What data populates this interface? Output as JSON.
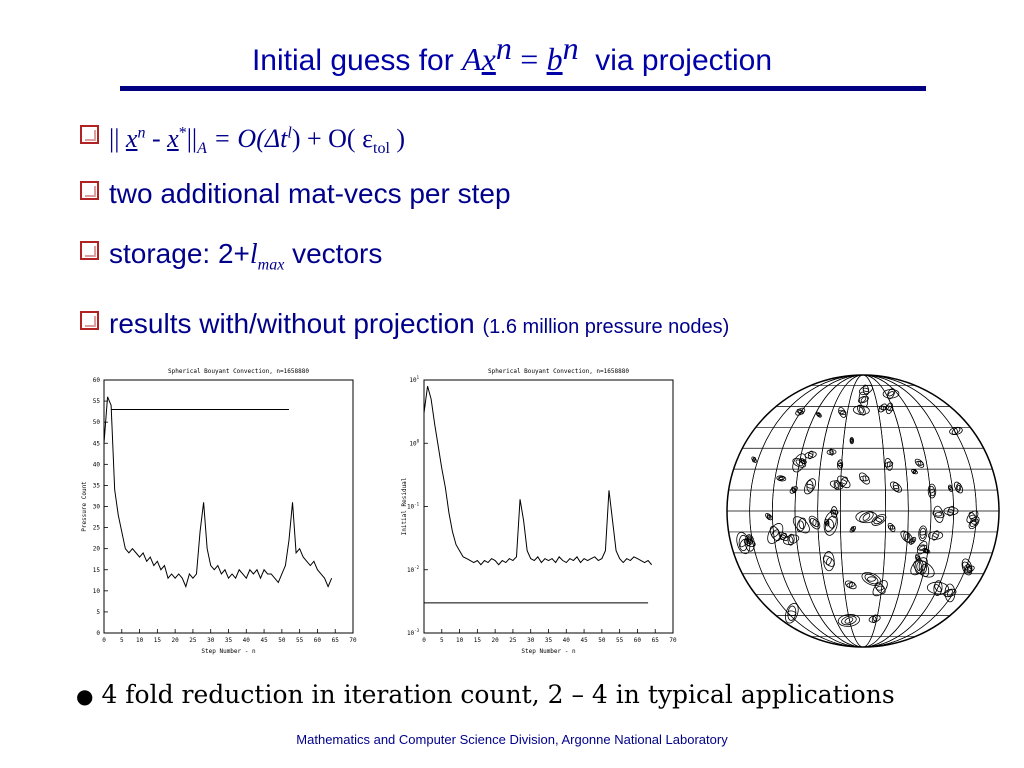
{
  "title": {
    "prefix": "Initial guess for",
    "A": "A",
    "x": "x",
    "n1": "n",
    "eq": "=",
    "b": "b",
    "n2": "n",
    "suffix": "via projection"
  },
  "bullets": {
    "b1": {
      "norm_open": "||",
      "x": "x",
      "n": "n",
      "minus": "-",
      "x2": "x",
      "star": "*",
      "norm_close": "||",
      "A": "A",
      "rhs1": "= O(Δt",
      "l": "l",
      "rhs2": ") + O( ε",
      "tol": "tol",
      "close": " )"
    },
    "b2": {
      "text": "two additional mat-vecs per step"
    },
    "b3": {
      "text1": "storage:  2+",
      "l": "l",
      "max": "max",
      "text2": " vectors"
    },
    "b4": {
      "text": "results with/without projection",
      "note": "(1.6 million pressure nodes)"
    }
  },
  "chart_data": [
    {
      "type": "line",
      "title": "Spherical Bouyant Convection, n=1658880",
      "xlabel": "Step Number - n",
      "ylabel": "Pressure Count",
      "xlim": [
        0,
        70
      ],
      "ylim": [
        0,
        60
      ],
      "xticks": [
        "0",
        "5",
        "10",
        "15",
        "20",
        "25",
        "30",
        "35",
        "40",
        "45",
        "50",
        "55",
        "60",
        "65",
        "70"
      ],
      "yticks": [
        "0",
        "5",
        "10",
        "15",
        "20",
        "25",
        "30",
        "35",
        "40",
        "45",
        "50",
        "55",
        "60"
      ],
      "series": [
        {
          "x": [
            0,
            1,
            2,
            3,
            4,
            5,
            6,
            7,
            8,
            9,
            10,
            11,
            12,
            13,
            14,
            15,
            16,
            17,
            18,
            19,
            20,
            21,
            22,
            23,
            24,
            25,
            26,
            27,
            28,
            29,
            30,
            31,
            32,
            33,
            34,
            35,
            36,
            37,
            38,
            39,
            40,
            41,
            42,
            43,
            44,
            45,
            46,
            47,
            48,
            49,
            50,
            51,
            52,
            53,
            54,
            55,
            56,
            57,
            58,
            59,
            60,
            61,
            62,
            63,
            64
          ],
          "values": [
            45,
            56,
            54,
            34,
            28,
            24,
            20,
            19,
            20,
            19,
            18,
            19,
            17,
            18,
            16,
            17,
            15,
            16,
            13,
            14,
            13,
            14,
            13,
            11,
            14,
            13,
            14,
            24,
            31,
            20,
            16,
            15,
            16,
            14,
            15,
            13,
            14,
            13,
            15,
            14,
            13,
            15,
            14,
            15,
            13,
            15,
            14,
            14,
            13,
            12,
            14,
            16,
            22,
            31,
            19,
            20,
            18,
            17,
            16,
            17,
            15,
            14,
            13,
            11,
            13
          ]
        },
        {
          "x": [
            2,
            52
          ],
          "values": [
            53,
            53
          ]
        }
      ]
    },
    {
      "type": "line",
      "title": "Spherical Bouyant Convection, n=1658880",
      "xlabel": "Step Number - n",
      "ylabel": "Initial Residual",
      "scale": "log",
      "xlim": [
        0,
        70
      ],
      "ylim": [
        "10^-3",
        "10^1"
      ],
      "xticks": [
        "0",
        "5",
        "10",
        "15",
        "20",
        "25",
        "30",
        "35",
        "40",
        "45",
        "50",
        "55",
        "60",
        "65",
        "70"
      ],
      "yticks": [
        "10^-3",
        "10^-2",
        "10^-1",
        "10^0",
        "10^1"
      ],
      "series": [
        {
          "x": [
            0,
            1,
            2,
            3,
            4,
            5,
            6,
            7,
            8,
            9,
            10,
            11,
            12,
            13,
            14,
            15,
            16,
            17,
            18,
            19,
            20,
            21,
            22,
            23,
            24,
            25,
            26,
            27,
            28,
            29,
            30,
            31,
            32,
            33,
            34,
            35,
            36,
            37,
            38,
            39,
            40,
            41,
            42,
            43,
            44,
            45,
            46,
            47,
            48,
            49,
            50,
            51,
            52,
            53,
            54,
            55,
            56,
            57,
            58,
            59,
            60,
            61,
            62,
            63,
            64
          ],
          "values": [
            3.0,
            8.0,
            5.0,
            2.0,
            0.9,
            0.4,
            0.2,
            0.08,
            0.04,
            0.025,
            0.02,
            0.016,
            0.015,
            0.014,
            0.013,
            0.014,
            0.012,
            0.014,
            0.013,
            0.015,
            0.014,
            0.012,
            0.014,
            0.013,
            0.015,
            0.014,
            0.016,
            0.13,
            0.06,
            0.02,
            0.015,
            0.014,
            0.016,
            0.013,
            0.015,
            0.014,
            0.015,
            0.013,
            0.016,
            0.014,
            0.013,
            0.015,
            0.014,
            0.016,
            0.013,
            0.015,
            0.014,
            0.015,
            0.016,
            0.014,
            0.015,
            0.02,
            0.18,
            0.06,
            0.02,
            0.015,
            0.013,
            0.015,
            0.014,
            0.016,
            0.015,
            0.014,
            0.013,
            0.014,
            0.012
          ]
        },
        {
          "x": [
            0,
            63
          ],
          "values": [
            0.003,
            0.003
          ]
        }
      ]
    }
  ],
  "note": {
    "bullet": "●",
    "text": "4 fold reduction in iteration count, 2 – 4 in typical applications"
  },
  "footer": "Mathematics and Computer Science Division, Argonne National Laboratory"
}
